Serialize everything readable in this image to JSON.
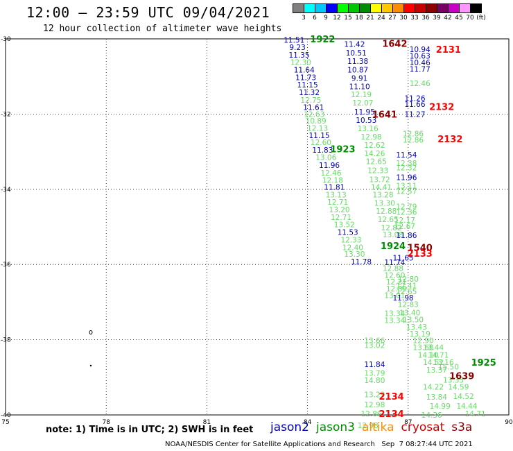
{
  "header": {
    "title": "12:00 – 23:59 UTC 09/04/2021",
    "subtitle": "12 hour collection of altimeter wave heights"
  },
  "legend": {
    "colors": [
      "#808080",
      "#00ffff",
      "#00c8ff",
      "#0000ff",
      "#00ff00",
      "#00c800",
      "#008c00",
      "#ffff00",
      "#ffc800",
      "#ff8c00",
      "#ff0000",
      "#c80000",
      "#8c0000",
      "#780064",
      "#c800c8",
      "#ff96ff",
      "#000000"
    ],
    "labels": [
      "3",
      "6",
      "9",
      "12",
      "15",
      "18",
      "21",
      "24",
      "27",
      "30",
      "33",
      "36",
      "39",
      "42",
      "45",
      "70",
      "(ft)"
    ]
  },
  "map": {
    "x_ticks": [
      "75",
      "78",
      "81",
      "84",
      "87",
      "90"
    ],
    "y_ticks": [
      "-30",
      "-32",
      "-34",
      "-36",
      "-38",
      "-40"
    ]
  },
  "observations": [
    {
      "t": "11.51",
      "c": "#0000b4",
      "lon": 83.6,
      "lat": -30.03
    },
    {
      "t": "9.23",
      "c": "#0000b4",
      "lon": 83.7,
      "lat": -30.22
    },
    {
      "t": "11.35",
      "c": "#0000b4",
      "lon": 83.75,
      "lat": -30.42
    },
    {
      "t": "12.30",
      "c": "#64dc64",
      "lon": 83.8,
      "lat": -30.62
    },
    {
      "t": "11.64",
      "c": "#0000b4",
      "lon": 83.9,
      "lat": -30.82
    },
    {
      "t": "11.73",
      "c": "#0000b4",
      "lon": 83.95,
      "lat": -31.02
    },
    {
      "t": "11.15",
      "c": "#0000b4",
      "lon": 84.0,
      "lat": -31.22
    },
    {
      "t": "11.32",
      "c": "#0000b4",
      "lon": 84.05,
      "lat": -31.42
    },
    {
      "t": "12.75",
      "c": "#64dc64",
      "lon": 84.1,
      "lat": -31.62
    },
    {
      "t": "11.61",
      "c": "#0000b4",
      "lon": 84.18,
      "lat": -31.82
    },
    {
      "t": "12.63",
      "c": "#64dc64",
      "lon": 84.2,
      "lat": -32.0
    },
    {
      "t": "10.89",
      "c": "#64dc64",
      "lon": 84.25,
      "lat": -32.18
    },
    {
      "t": "12.13",
      "c": "#64dc64",
      "lon": 84.3,
      "lat": -32.37
    },
    {
      "t": "11.15",
      "c": "#0000b4",
      "lon": 84.35,
      "lat": -32.56
    },
    {
      "t": "12.60",
      "c": "#64dc64",
      "lon": 84.4,
      "lat": -32.75
    },
    {
      "t": "11.83",
      "c": "#0000b4",
      "lon": 84.45,
      "lat": -32.95
    },
    {
      "t": "13.06",
      "c": "#64dc64",
      "lon": 84.55,
      "lat": -33.15
    },
    {
      "t": "11.96",
      "c": "#0000b4",
      "lon": 84.65,
      "lat": -33.36
    },
    {
      "t": "12.46",
      "c": "#64dc64",
      "lon": 84.7,
      "lat": -33.56
    },
    {
      "t": "12.18",
      "c": "#64dc64",
      "lon": 84.75,
      "lat": -33.75
    },
    {
      "t": "11.81",
      "c": "#0000b4",
      "lon": 84.8,
      "lat": -33.94
    },
    {
      "t": "13.13",
      "c": "#64dc64",
      "lon": 84.85,
      "lat": -34.14
    },
    {
      "t": "12.71",
      "c": "#64dc64",
      "lon": 84.9,
      "lat": -34.34
    },
    {
      "t": "13.20",
      "c": "#64dc64",
      "lon": 84.95,
      "lat": -34.54
    },
    {
      "t": "12.71",
      "c": "#64dc64",
      "lon": 85.0,
      "lat": -34.74
    },
    {
      "t": "13.52",
      "c": "#64dc64",
      "lon": 85.1,
      "lat": -34.94
    },
    {
      "t": "11.53",
      "c": "#0000b4",
      "lon": 85.2,
      "lat": -35.14
    },
    {
      "t": "12.33",
      "c": "#64dc64",
      "lon": 85.3,
      "lat": -35.34
    },
    {
      "t": "12.40",
      "c": "#64dc64",
      "lon": 85.35,
      "lat": -35.54
    },
    {
      "t": "13.30",
      "c": "#64dc64",
      "lon": 85.4,
      "lat": -35.72
    },
    {
      "t": "11.78",
      "c": "#0000b4",
      "lon": 85.6,
      "lat": -35.92
    },
    {
      "t": "11.42",
      "c": "#0000b4",
      "lon": 85.4,
      "lat": -30.14
    },
    {
      "t": "10.51",
      "c": "#0000b4",
      "lon": 85.45,
      "lat": -30.37
    },
    {
      "t": "11.38",
      "c": "#0000b4",
      "lon": 85.5,
      "lat": -30.59
    },
    {
      "t": "10.87",
      "c": "#0000b4",
      "lon": 85.5,
      "lat": -30.82
    },
    {
      "t": "9.91",
      "c": "#0000b4",
      "lon": 85.55,
      "lat": -31.04
    },
    {
      "t": "11.10",
      "c": "#0000b4",
      "lon": 85.55,
      "lat": -31.26
    },
    {
      "t": "12.19",
      "c": "#64dc64",
      "lon": 85.6,
      "lat": -31.48
    },
    {
      "t": "12.07",
      "c": "#64dc64",
      "lon": 85.65,
      "lat": -31.7
    },
    {
      "t": "11.95",
      "c": "#0000b4",
      "lon": 85.7,
      "lat": -31.94
    },
    {
      "t": "10.53",
      "c": "#0000b4",
      "lon": 85.75,
      "lat": -32.16
    },
    {
      "t": "13.16",
      "c": "#64dc64",
      "lon": 85.8,
      "lat": -32.38
    },
    {
      "t": "12.98",
      "c": "#64dc64",
      "lon": 85.9,
      "lat": -32.6
    },
    {
      "t": "12.62",
      "c": "#64dc64",
      "lon": 86.0,
      "lat": -32.82
    },
    {
      "t": "14.26",
      "c": "#64dc64",
      "lon": 86.0,
      "lat": -33.04
    },
    {
      "t": "12.65",
      "c": "#64dc64",
      "lon": 86.05,
      "lat": -33.26
    },
    {
      "t": "12.33",
      "c": "#64dc64",
      "lon": 86.1,
      "lat": -33.5
    },
    {
      "t": "13.72",
      "c": "#64dc64",
      "lon": 86.15,
      "lat": -33.74
    },
    {
      "t": "14.41",
      "c": "#64dc64",
      "lon": 86.2,
      "lat": -33.94
    },
    {
      "t": "13.28",
      "c": "#64dc64",
      "lon": 86.25,
      "lat": -34.14
    },
    {
      "t": "13.30",
      "c": "#64dc64",
      "lon": 86.3,
      "lat": -34.36
    },
    {
      "t": "12.88",
      "c": "#64dc64",
      "lon": 86.35,
      "lat": -34.58
    },
    {
      "t": "12.65",
      "c": "#64dc64",
      "lon": 86.4,
      "lat": -34.8
    },
    {
      "t": "12.82",
      "c": "#64dc64",
      "lon": 86.5,
      "lat": -35.02
    },
    {
      "t": "13.08",
      "c": "#64dc64",
      "lon": 86.55,
      "lat": -35.2
    },
    {
      "t": "11.74",
      "c": "#0000b4",
      "lon": 86.6,
      "lat": -35.94
    },
    {
      "t": "12.88",
      "c": "#64dc64",
      "lon": 86.55,
      "lat": -36.1
    },
    {
      "t": "12.60",
      "c": "#64dc64",
      "lon": 86.6,
      "lat": -36.28
    },
    {
      "t": "12.21",
      "c": "#64dc64",
      "lon": 86.65,
      "lat": -36.46
    },
    {
      "t": "12.89",
      "c": "#64dc64",
      "lon": 86.65,
      "lat": -36.64
    },
    {
      "t": "13.01",
      "c": "#64dc64",
      "lon": 86.6,
      "lat": -36.82
    },
    {
      "t": "13.34",
      "c": "#64dc64",
      "lon": 86.6,
      "lat": -37.3
    },
    {
      "t": "13.34",
      "c": "#64dc64",
      "lon": 86.6,
      "lat": -37.48
    },
    {
      "t": "10.94",
      "c": "#0000b4",
      "lon": 87.35,
      "lat": -30.28
    },
    {
      "t": "10.63",
      "c": "#0000b4",
      "lon": 87.35,
      "lat": -30.45
    },
    {
      "t": "10.46",
      "c": "#0000b4",
      "lon": 87.35,
      "lat": -30.63
    },
    {
      "t": "11.77",
      "c": "#0000b4",
      "lon": 87.35,
      "lat": -30.8
    },
    {
      "t": "12.46",
      "c": "#64dc64",
      "lon": 87.35,
      "lat": -31.18
    },
    {
      "t": "11.26",
      "c": "#0000b4",
      "lon": 87.2,
      "lat": -31.58
    },
    {
      "t": "11.66",
      "c": "#0000b4",
      "lon": 87.2,
      "lat": -31.73
    },
    {
      "t": "11.27",
      "c": "#0000b4",
      "lon": 87.2,
      "lat": -32.0
    },
    {
      "t": "12.86",
      "c": "#64dc64",
      "lon": 87.15,
      "lat": -32.52
    },
    {
      "t": "12.86",
      "c": "#64dc64",
      "lon": 87.15,
      "lat": -32.68
    },
    {
      "t": "11.54",
      "c": "#0000b4",
      "lon": 86.95,
      "lat": -33.08
    },
    {
      "t": "12.38",
      "c": "#64dc64",
      "lon": 86.95,
      "lat": -33.3
    },
    {
      "t": "12.32",
      "c": "#64dc64",
      "lon": 86.95,
      "lat": -33.42
    },
    {
      "t": "11.96",
      "c": "#0000b4",
      "lon": 86.95,
      "lat": -33.68
    },
    {
      "t": "13.11",
      "c": "#64dc64",
      "lon": 86.95,
      "lat": -33.9
    },
    {
      "t": "12.57",
      "c": "#64dc64",
      "lon": 86.95,
      "lat": -34.05
    },
    {
      "t": "12.79",
      "c": "#64dc64",
      "lon": 86.95,
      "lat": -34.46
    },
    {
      "t": "12.36",
      "c": "#64dc64",
      "lon": 86.95,
      "lat": -34.6
    },
    {
      "t": "12.17",
      "c": "#64dc64",
      "lon": 86.9,
      "lat": -34.82
    },
    {
      "t": "12.67",
      "c": "#64dc64",
      "lon": 86.9,
      "lat": -34.98
    },
    {
      "t": "11.86",
      "c": "#0000b4",
      "lon": 86.95,
      "lat": -35.22
    },
    {
      "t": "11.65",
      "c": "#0000b4",
      "lon": 86.85,
      "lat": -35.82
    },
    {
      "t": "11.98",
      "c": "#0000b4",
      "lon": 86.85,
      "lat": -36.88
    },
    {
      "t": "12.80",
      "c": "#64dc64",
      "lon": 87.0,
      "lat": -36.38
    },
    {
      "t": "12.41",
      "c": "#64dc64",
      "lon": 86.95,
      "lat": -36.56
    },
    {
      "t": "12.65",
      "c": "#64dc64",
      "lon": 86.95,
      "lat": -36.72
    },
    {
      "t": "12.83",
      "c": "#64dc64",
      "lon": 87.0,
      "lat": -37.06
    },
    {
      "t": "13.40",
      "c": "#64dc64",
      "lon": 87.05,
      "lat": -37.28
    },
    {
      "t": "13.50",
      "c": "#64dc64",
      "lon": 87.15,
      "lat": -37.46
    },
    {
      "t": "13.43",
      "c": "#64dc64",
      "lon": 87.25,
      "lat": -37.66
    },
    {
      "t": "13.19",
      "c": "#64dc64",
      "lon": 87.35,
      "lat": -37.84
    },
    {
      "t": "12.90",
      "c": "#64dc64",
      "lon": 87.45,
      "lat": -38.02
    },
    {
      "t": "13.68",
      "c": "#64dc64",
      "lon": 87.45,
      "lat": -38.2
    },
    {
      "t": "13.44",
      "c": "#64dc64",
      "lon": 87.75,
      "lat": -38.2
    },
    {
      "t": "14.10",
      "c": "#64dc64",
      "lon": 87.6,
      "lat": -38.4
    },
    {
      "t": "14.71",
      "c": "#64dc64",
      "lon": 87.9,
      "lat": -38.4
    },
    {
      "t": "14.52",
      "c": "#64dc64",
      "lon": 87.75,
      "lat": -38.6
    },
    {
      "t": "13.16",
      "c": "#64dc64",
      "lon": 88.05,
      "lat": -38.6
    },
    {
      "t": "13.37",
      "c": "#64dc64",
      "lon": 87.85,
      "lat": -38.8
    },
    {
      "t": "15.50",
      "c": "#64dc64",
      "lon": 88.2,
      "lat": -38.72
    },
    {
      "t": "13.35",
      "c": "#64dc64",
      "lon": 88.35,
      "lat": -39.07
    },
    {
      "t": "14.59",
      "c": "#64dc64",
      "lon": 88.5,
      "lat": -39.25
    },
    {
      "t": "14.22",
      "c": "#64dc64",
      "lon": 87.75,
      "lat": -39.25
    },
    {
      "t": "13.84",
      "c": "#64dc64",
      "lon": 87.85,
      "lat": -39.52
    },
    {
      "t": "14.52",
      "c": "#64dc64",
      "lon": 88.65,
      "lat": -39.5
    },
    {
      "t": "14.99",
      "c": "#64dc64",
      "lon": 87.95,
      "lat": -39.76
    },
    {
      "t": "14.44",
      "c": "#64dc64",
      "lon": 88.75,
      "lat": -39.76
    },
    {
      "t": "14.36",
      "c": "#64dc64",
      "lon": 87.7,
      "lat": -40.0
    },
    {
      "t": "14.71",
      "c": "#64dc64",
      "lon": 89.0,
      "lat": -39.96
    },
    {
      "t": "13.66",
      "c": "#64dc64",
      "lon": 86.0,
      "lat": -38.02
    },
    {
      "t": "13.02",
      "c": "#64dc64",
      "lon": 86.0,
      "lat": -38.15
    },
    {
      "t": "11.84",
      "c": "#0000b4",
      "lon": 86.0,
      "lat": -38.65
    },
    {
      "t": "13.79",
      "c": "#64dc64",
      "lon": 86.0,
      "lat": -38.88
    },
    {
      "t": "14.80",
      "c": "#64dc64",
      "lon": 86.0,
      "lat": -39.08
    },
    {
      "t": "13.29",
      "c": "#64dc64",
      "lon": 86.0,
      "lat": -39.46
    },
    {
      "t": "12.98",
      "c": "#64dc64",
      "lon": 86.0,
      "lat": -39.72
    },
    {
      "t": "12.86",
      "c": "#64dc64",
      "lon": 85.9,
      "lat": -39.96
    },
    {
      "t": "12.98",
      "c": "#64dc64",
      "lon": 85.8,
      "lat": -40.28
    }
  ],
  "timestamps": [
    {
      "t": "1922",
      "c": "#008c00",
      "lon": 84.45,
      "lat": -30.0
    },
    {
      "t": "1642",
      "c": "#8c0000",
      "lon": 86.6,
      "lat": -30.12
    },
    {
      "t": "2131",
      "c": "#ff0000",
      "lon": 88.2,
      "lat": -30.28
    },
    {
      "t": "2132",
      "c": "#ff0000",
      "lon": 88.0,
      "lat": -31.8
    },
    {
      "t": "1641",
      "c": "#8c0000",
      "lon": 86.3,
      "lat": -32.0
    },
    {
      "t": "2132",
      "c": "#ff0000",
      "lon": 88.25,
      "lat": -32.66
    },
    {
      "t": "1923",
      "c": "#008c00",
      "lon": 85.05,
      "lat": -32.92
    },
    {
      "t": "1924",
      "c": "#008c00",
      "lon": 86.55,
      "lat": -35.5
    },
    {
      "t": "1540",
      "c": "#8c0000",
      "lon": 87.35,
      "lat": -35.54
    },
    {
      "t": "2133",
      "c": "#ff0000",
      "lon": 87.35,
      "lat": -35.7
    },
    {
      "t": "1925",
      "c": "#008c00",
      "lon": 89.25,
      "lat": -38.6
    },
    {
      "t": "1639",
      "c": "#8c0000",
      "lon": 88.6,
      "lat": -38.96
    },
    {
      "t": "2134",
      "c": "#ff0000",
      "lon": 86.5,
      "lat": -39.5
    },
    {
      "t": "2134",
      "c": "#ff0000",
      "lon": 86.5,
      "lat": -39.96
    }
  ],
  "note": "note:  1) Time is in UTC; 2) SWH is in feet",
  "satellites": [
    {
      "name": "jason2",
      "color": "#0000b4"
    },
    {
      "name": "jason3",
      "color": "#008c00"
    },
    {
      "name": "altika",
      "color": "#ff8c00"
    },
    {
      "name": "cryosat",
      "color": "#c80000"
    },
    {
      "name": "s3a",
      "color": "#8c0000"
    }
  ],
  "footer": {
    "agency": "NOAA/NESDIS Center for Satellite Applications and Research",
    "generated": "Sep  7 08:27:44 UTC 2021"
  }
}
